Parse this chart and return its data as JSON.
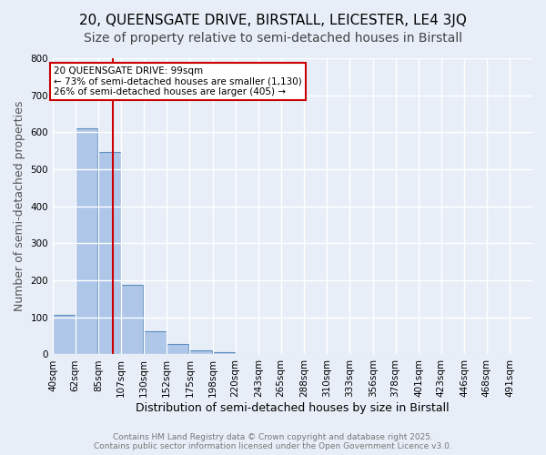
{
  "title": "20, QUEENSGATE DRIVE, BIRSTALL, LEICESTER, LE4 3JQ",
  "subtitle": "Size of property relative to semi-detached houses in Birstall",
  "xlabel": "Distribution of semi-detached houses by size in Birstall",
  "ylabel": "Number of semi-detached properties",
  "bin_labels": [
    "40sqm",
    "62sqm",
    "85sqm",
    "107sqm",
    "130sqm",
    "152sqm",
    "175sqm",
    "198sqm",
    "220sqm",
    "243sqm",
    "265sqm",
    "288sqm",
    "310sqm",
    "333sqm",
    "356sqm",
    "378sqm",
    "401sqm",
    "423sqm",
    "446sqm",
    "468sqm",
    "491sqm"
  ],
  "bin_edges": [
    40,
    62,
    85,
    107,
    130,
    152,
    175,
    198,
    220,
    243,
    265,
    288,
    310,
    333,
    356,
    378,
    401,
    423,
    446,
    468,
    491
  ],
  "bar_heights": [
    108,
    610,
    548,
    188,
    63,
    28,
    10,
    5,
    0,
    0,
    0,
    0,
    0,
    0,
    0,
    0,
    0,
    0,
    0,
    0
  ],
  "bar_color": "#aec6e8",
  "bar_edge_color": "#5a8fbe",
  "property_sqm": 99,
  "red_line_color": "#cc0000",
  "annotation_title": "20 QUEENSGATE DRIVE: 99sqm",
  "annotation_line1": "← 73% of semi-detached houses are smaller (1,130)",
  "annotation_line2": "26% of semi-detached houses are larger (405) →",
  "annotation_box_color": "#ffffff",
  "annotation_box_edge": "#cc0000",
  "ylim": [
    0,
    800
  ],
  "background_color": "#e8eef8",
  "grid_color": "#ffffff",
  "footer_line1": "Contains HM Land Registry data © Crown copyright and database right 2025.",
  "footer_line2": "Contains public sector information licensed under the Open Government Licence v3.0.",
  "title_fontsize": 11,
  "subtitle_fontsize": 10,
  "axis_fontsize": 9,
  "tick_fontsize": 7.5,
  "footer_fontsize": 6.5
}
